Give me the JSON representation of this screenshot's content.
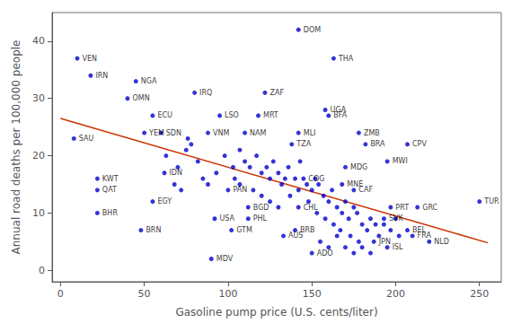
{
  "chart_data": {
    "type": "scatter",
    "xlabel": "Gasoline pump price (U.S. cents/liter)",
    "ylabel": "Annual road deaths per 100,000 people",
    "x": [
      10,
      18,
      45,
      40,
      80,
      8,
      55,
      50,
      60,
      88,
      95,
      118,
      110,
      122,
      158,
      160,
      142,
      138,
      178,
      182,
      207,
      195,
      170,
      142,
      163,
      62,
      22,
      22,
      22,
      55,
      48,
      145,
      168,
      175,
      100,
      112,
      92,
      112,
      102,
      90,
      142,
      140,
      133,
      150,
      197,
      213,
      193,
      207,
      210,
      187,
      195,
      220,
      250,
      75,
      82,
      98,
      103,
      107,
      110,
      113,
      117,
      120,
      123,
      125,
      127,
      130,
      132,
      134,
      136,
      140,
      143,
      147,
      150,
      152,
      154,
      157,
      160,
      162,
      165,
      168,
      170,
      172,
      175,
      177,
      180,
      183,
      185,
      188,
      190,
      193,
      197,
      200,
      202,
      68,
      72,
      78,
      85,
      88,
      93,
      104,
      107,
      115,
      120,
      125,
      130,
      137,
      142,
      148,
      153,
      158,
      163,
      167,
      173,
      178,
      63,
      70,
      76,
      155,
      160,
      165,
      170,
      175,
      180,
      185
    ],
    "values": [
      37,
      34,
      33,
      30,
      31,
      23,
      27,
      24,
      24,
      24,
      27,
      27,
      24,
      31,
      28,
      27,
      24,
      22,
      24,
      22,
      22,
      19,
      18,
      42,
      37,
      17,
      16,
      14,
      10,
      12,
      7,
      16,
      15,
      14,
      14,
      11,
      9,
      9,
      7,
      2,
      11,
      7,
      6,
      3,
      11,
      11,
      9,
      7,
      6,
      5,
      4,
      5,
      12,
      21,
      19,
      20,
      18,
      21,
      19,
      18,
      20,
      17,
      18,
      16,
      19,
      17,
      15,
      16,
      18,
      16,
      19,
      15,
      14,
      16,
      15,
      13,
      12,
      14,
      11,
      10,
      12,
      9,
      11,
      10,
      8,
      7,
      9,
      8,
      6,
      8,
      7,
      9,
      6,
      15,
      14,
      22,
      16,
      15,
      17,
      16,
      15,
      14,
      13,
      12,
      11,
      13,
      14,
      12,
      10,
      9,
      8,
      7,
      6,
      5,
      20,
      18,
      23,
      5,
      4,
      6,
      4,
      3,
      4,
      3
    ],
    "labels": [
      "VEN",
      "IRN",
      "NGA",
      "OMN",
      "IRQ",
      "SAU",
      "ECU",
      "YEM",
      "SDN",
      "VNM",
      "LSO",
      "MRT",
      "NAM",
      "ZAF",
      "UGA",
      "BFA",
      "MLI",
      "TZA",
      "ZMB",
      "BRA",
      "CPV",
      "MWI",
      "MDG",
      "DOM",
      "THA",
      "IDN",
      "KWT",
      "QAT",
      "BHR",
      "EGY",
      "BRN",
      "COG",
      "MNE",
      "CAF",
      "PAN",
      "BGD",
      "USA",
      "PHL",
      "GTM",
      "MDV",
      "CHL",
      "BRB",
      "AUS",
      "ADO",
      "PRT",
      "GRC",
      "SVK",
      "BEL",
      "FRA",
      "JPN",
      "ISL",
      "NLD",
      "TUR",
      null,
      null,
      null,
      null,
      null,
      null,
      null,
      null,
      null,
      null,
      null,
      null,
      null,
      null,
      null,
      null,
      null,
      null,
      null,
      null,
      null,
      null,
      null,
      null,
      null,
      null,
      null,
      null,
      null,
      null,
      null,
      null,
      null,
      null,
      null,
      null,
      null,
      null,
      null,
      null,
      null,
      null,
      null,
      null,
      null,
      null,
      null,
      null,
      null,
      null,
      null,
      null,
      null,
      null,
      null,
      null,
      null,
      null,
      null,
      null,
      null,
      null,
      null,
      null,
      null,
      null,
      null,
      null,
      null
    ],
    "color": "#0000cc",
    "regression": {
      "type": "line",
      "x": [
        0,
        255
      ],
      "values": [
        26.5,
        4.8
      ],
      "color": "#cc3300"
    },
    "xlim": [
      -5,
      263
    ],
    "ylim": [
      -2,
      45
    ],
    "xticks": [
      0,
      50,
      100,
      150,
      200,
      250
    ],
    "yticks": [
      0,
      10,
      20,
      30,
      40
    ],
    "grid": false
  }
}
